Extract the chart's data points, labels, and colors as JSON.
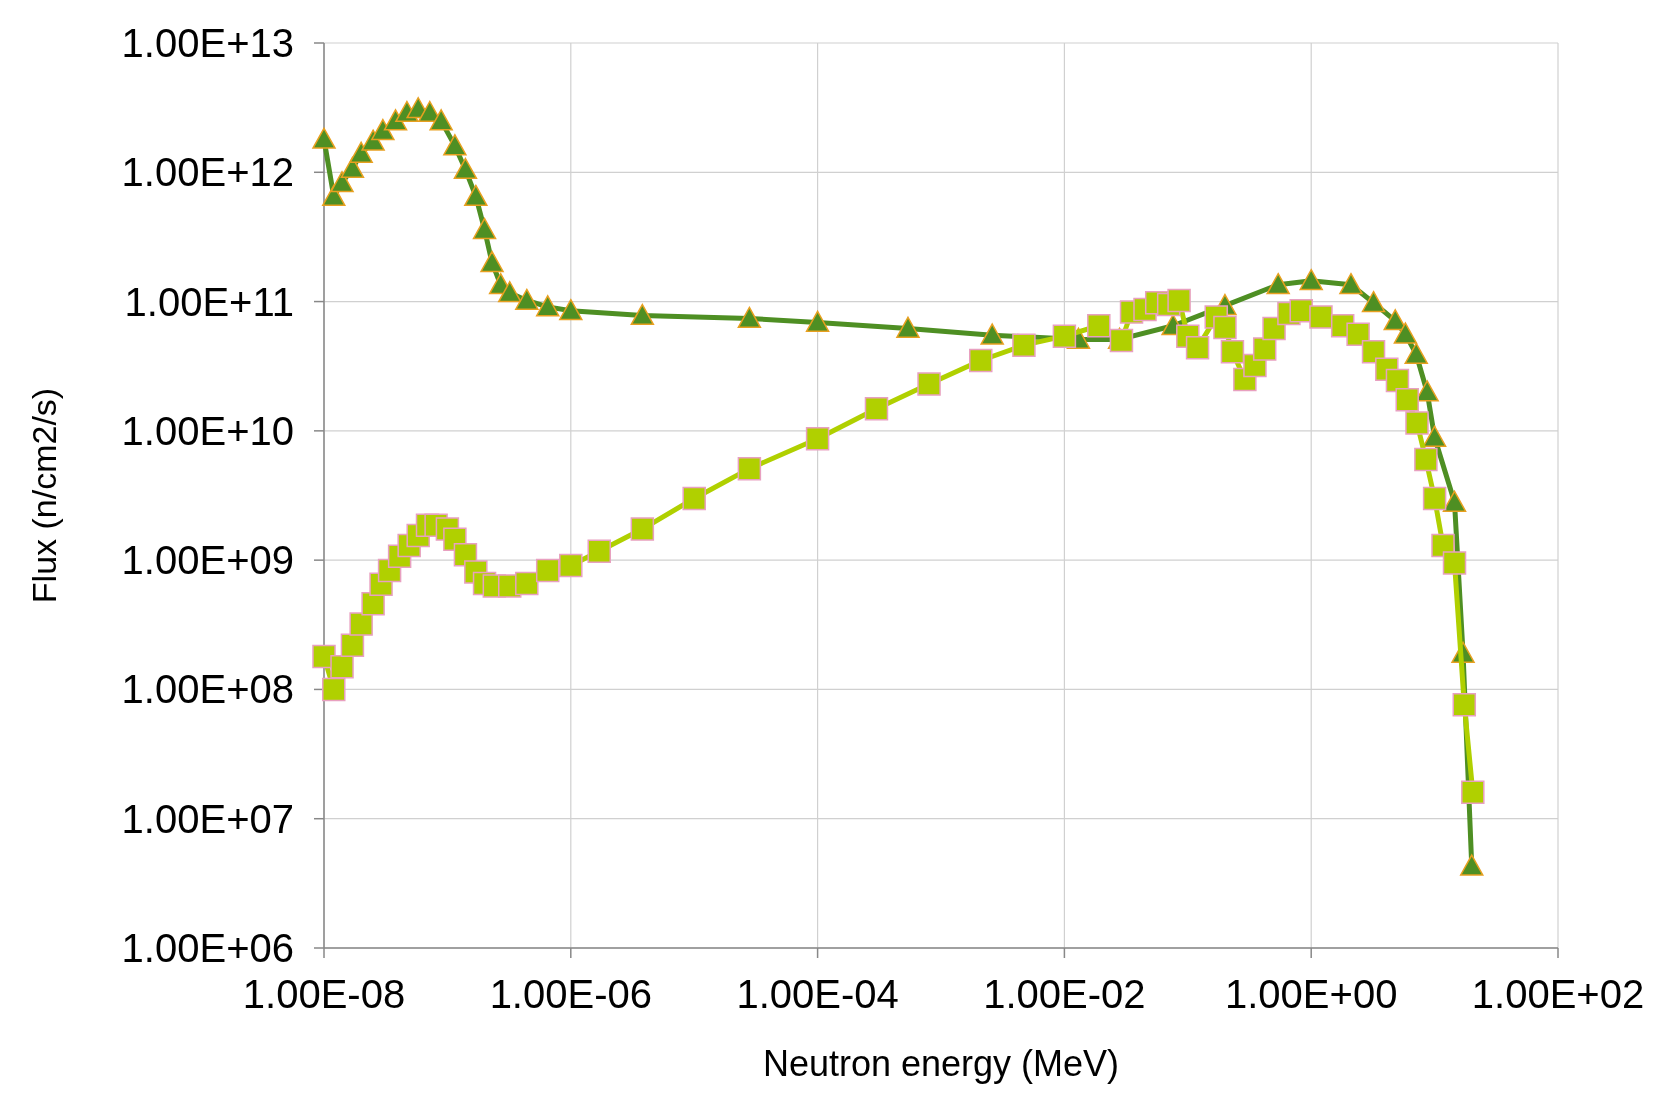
{
  "chart_data": {
    "type": "line",
    "xlabel": "Neutron energy (MeV)",
    "ylabel": "Flux (n/cm2/s)",
    "log": "xy",
    "grid": true,
    "xlim": [
      1e-08,
      100
    ],
    "ylim": [
      1000000.0,
      10000000000000.0
    ],
    "xticks": [
      {
        "value": 1e-08,
        "label": "1.00E-08"
      },
      {
        "value": 1e-06,
        "label": "1.00E-06"
      },
      {
        "value": 0.0001,
        "label": "1.00E-04"
      },
      {
        "value": 0.01,
        "label": "1.00E-02"
      },
      {
        "value": 1,
        "label": "1.00E+00"
      },
      {
        "value": 100,
        "label": "1.00E+02"
      }
    ],
    "yticks": [
      {
        "value": 1000000.0,
        "label": "1.00E+06"
      },
      {
        "value": 10000000.0,
        "label": "1.00E+07"
      },
      {
        "value": 100000000.0,
        "label": "1.00E+08"
      },
      {
        "value": 1000000000.0,
        "label": "1.00E+09"
      },
      {
        "value": 10000000000.0,
        "label": "1.00E+10"
      },
      {
        "value": 100000000000.0,
        "label": "1.00E+11"
      },
      {
        "value": 1000000000000.0,
        "label": "1.00E+12"
      },
      {
        "value": 10000000000000.0,
        "label": "1.00E+13"
      }
    ],
    "series": [
      {
        "color": "#4e8f23",
        "marker": "triangle",
        "x": [
          1e-08,
          1.2e-08,
          1.4e-08,
          1.7e-08,
          2e-08,
          2.5e-08,
          3e-08,
          3.8e-08,
          4.7e-08,
          5.8e-08,
          7.2e-08,
          8.9e-08,
          1.15e-07,
          1.4e-07,
          1.7e-07,
          2e-07,
          2.3e-07,
          2.7e-07,
          3.2e-07,
          4.4e-07,
          6.5e-07,
          1e-06,
          3.8e-06,
          2.8e-05,
          0.0001,
          0.00054,
          0.0026,
          0.013,
          0.028,
          0.076,
          0.2,
          0.54,
          1,
          2.1,
          3.2,
          4.8,
          5.8,
          7.1,
          8.7,
          10,
          14.5,
          17,
          20
        ],
        "values": [
          1800000000000.0,
          650000000000.0,
          830000000000.0,
          1070000000000.0,
          1400000000000.0,
          1740000000000.0,
          2100000000000.0,
          2500000000000.0,
          2900000000000.0,
          3100000000000.0,
          2900000000000.0,
          2500000000000.0,
          1600000000000.0,
          1050000000000.0,
          650000000000.0,
          360000000000.0,
          200000000000.0,
          135000000000.0,
          117000000000.0,
          102000000000.0,
          91000000000.0,
          85000000000.0,
          78000000000.0,
          74000000000.0,
          69000000000.0,
          62000000000.0,
          55000000000.0,
          51000000000.0,
          51000000000.0,
          65000000000.0,
          93000000000.0,
          135000000000.0,
          145000000000.0,
          135000000000.0,
          98000000000.0,
          71000000000.0,
          56000000000.0,
          39000000000.0,
          20000000000.0,
          8900000000.0,
          2800000000.0,
          190000000.0,
          4300000.0
        ]
      },
      {
        "color": "#b0d000",
        "marker": "square",
        "x": [
          1e-08,
          1.2e-08,
          1.4e-08,
          1.7e-08,
          2e-08,
          2.5e-08,
          2.9e-08,
          3.4e-08,
          4.1e-08,
          4.9e-08,
          5.8e-08,
          6.9e-08,
          8.1e-08,
          1e-07,
          1.15e-07,
          1.4e-07,
          1.7e-07,
          2e-07,
          2.4e-07,
          3.2e-07,
          4.4e-07,
          6.5e-07,
          1e-06,
          1.7e-06,
          3.8e-06,
          1e-05,
          2.8e-05,
          0.0001,
          0.0003,
          0.0008,
          0.0021,
          0.0047,
          0.01,
          0.019,
          0.029,
          0.035,
          0.045,
          0.056,
          0.07,
          0.085,
          0.1,
          0.12,
          0.17,
          0.2,
          0.23,
          0.29,
          0.35,
          0.42,
          0.5,
          0.66,
          0.83,
          1.2,
          1.8,
          2.4,
          3.2,
          4.1,
          5,
          6,
          7.2,
          8.5,
          10,
          11.7,
          14.5,
          17.4,
          20.4
        ],
        "values": [
          180000000.0,
          100000000.0,
          150000000.0,
          220000000.0,
          320000000.0,
          460000000.0,
          650000000.0,
          830000000.0,
          1070000000.0,
          1300000000.0,
          1550000000.0,
          1860000000.0,
          1860000000.0,
          1740000000.0,
          1450000000.0,
          1100000000.0,
          810000000.0,
          660000000.0,
          630000000.0,
          630000000.0,
          660000000.0,
          830000000.0,
          910000000.0,
          1170000000.0,
          1740000000.0,
          3000000000.0,
          5100000000.0,
          8700000000.0,
          14800000000.0,
          23000000000.0,
          35000000000.0,
          46000000000.0,
          54000000000.0,
          65000000000.0,
          50000000000.0,
          83000000000.0,
          87000000000.0,
          98000000000.0,
          95000000000.0,
          102000000000.0,
          54000000000.0,
          44000000000.0,
          76000000000.0,
          63000000000.0,
          41000000000.0,
          25000000000.0,
          32000000000.0,
          43000000000.0,
          62000000000.0,
          81000000000.0,
          85000000000.0,
          76000000000.0,
          65000000000.0,
          56000000000.0,
          41000000000.0,
          30000000000.0,
          24500000000.0,
          17400000000.0,
          11500000000.0,
          6000000000.0,
          3000000000.0,
          1300000000.0,
          950000000.0,
          76000000.0,
          16000000.0
        ]
      }
    ]
  }
}
